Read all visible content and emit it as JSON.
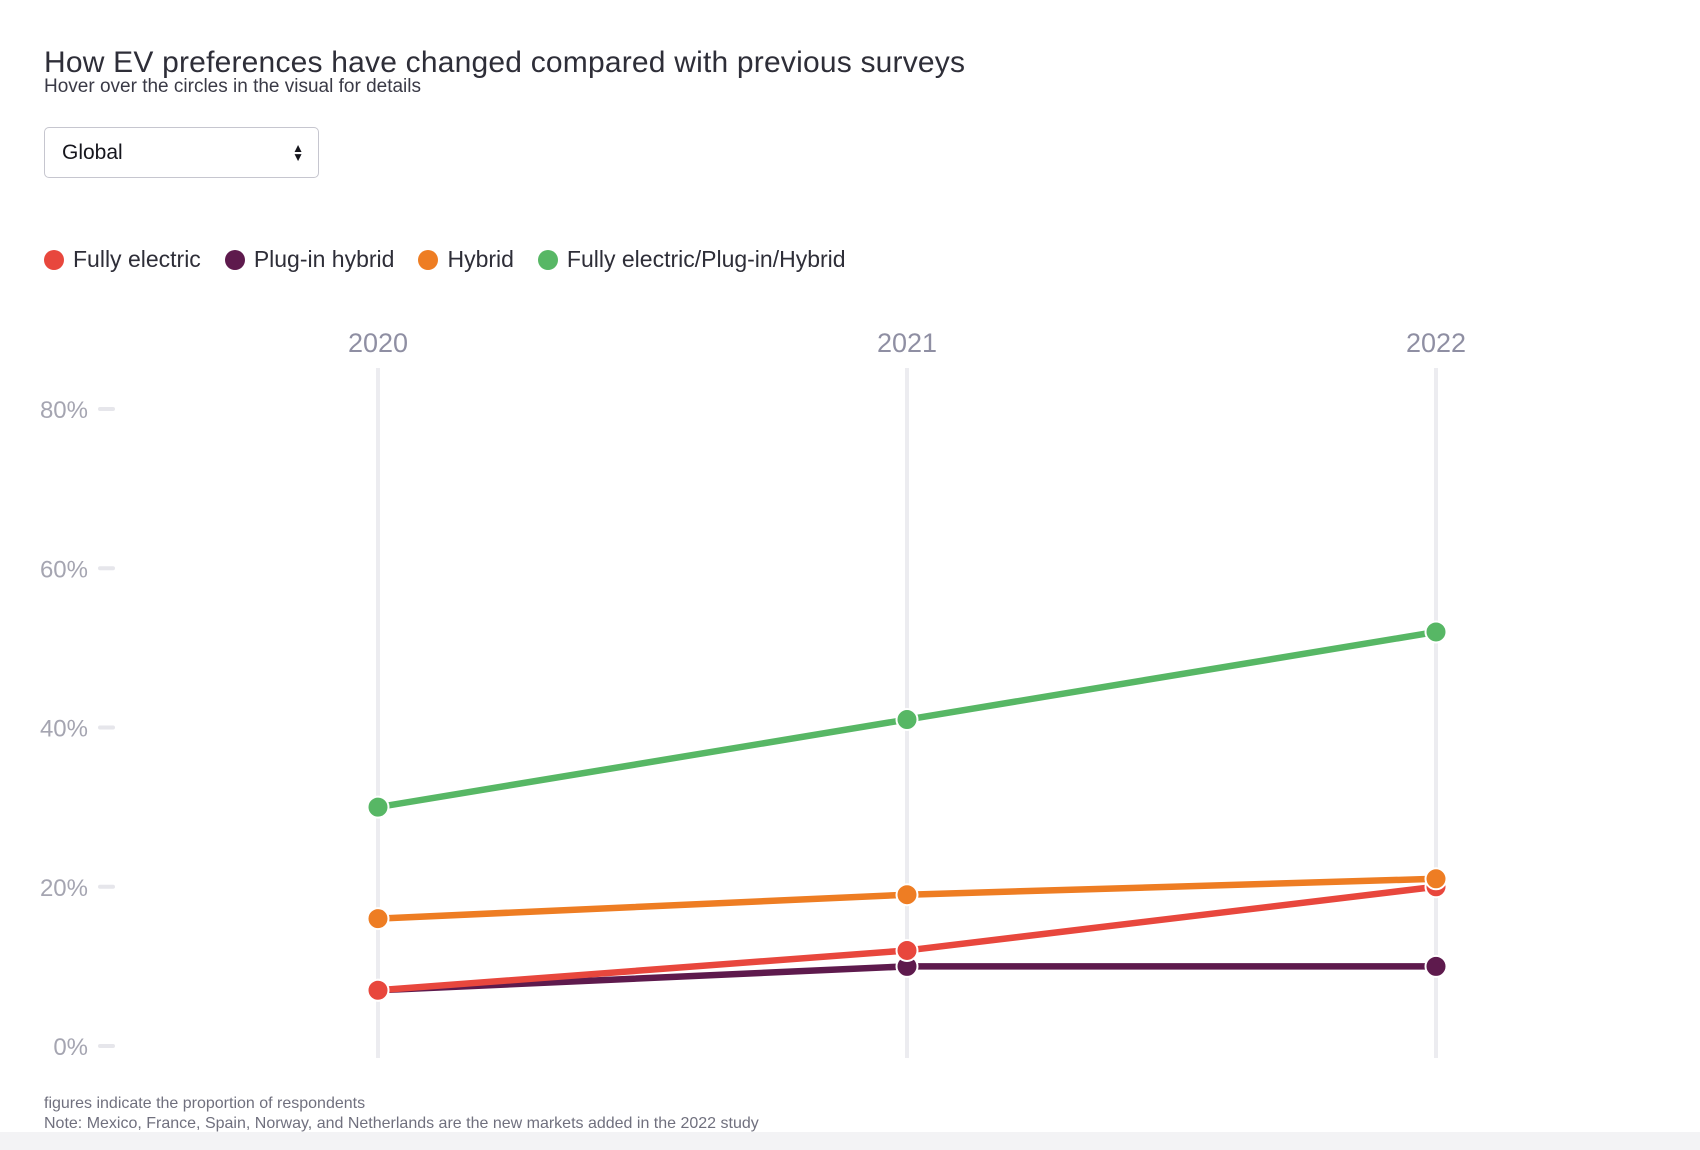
{
  "header": {
    "title": "How EV preferences have changed compared with previous surveys",
    "subtitle": "Hover over the circles in the visual for details"
  },
  "controls": {
    "region_select": {
      "value": "Global"
    }
  },
  "legend": [
    {
      "label": "Fully electric",
      "color": "#e8473d"
    },
    {
      "label": "Plug-in hybrid",
      "color": "#5e1a4d"
    },
    {
      "label": "Hybrid",
      "color": "#ee7d23"
    },
    {
      "label": "Fully electric/Plug-in/Hybrid",
      "color": "#57b765"
    }
  ],
  "chart_data": {
    "type": "line",
    "title": "How EV preferences have changed compared with previous surveys",
    "x": [
      "2020",
      "2021",
      "2022"
    ],
    "series": [
      {
        "name": "Fully electric",
        "color": "#e8473d",
        "values": [
          7,
          12,
          20
        ]
      },
      {
        "name": "Plug-in hybrid",
        "color": "#5e1a4d",
        "values": [
          7,
          10,
          10
        ]
      },
      {
        "name": "Hybrid",
        "color": "#ee7d23",
        "values": [
          16,
          19,
          21
        ]
      },
      {
        "name": "Fully electric/Plug-in/Hybrid",
        "color": "#57b765",
        "values": [
          30,
          41,
          52
        ]
      }
    ],
    "unit": "%",
    "ylim": [
      0,
      80
    ],
    "y_tick_values": [
      0,
      20,
      40,
      60,
      80
    ],
    "y_ticks": [
      "0%",
      "20%",
      "40%",
      "60%",
      "80%"
    ],
    "grid": "vertical-only",
    "legend_position": "top",
    "draw_order": [
      1,
      0,
      2,
      3
    ],
    "colors": {
      "axis_label": "#a5a5b1",
      "year_label": "#8f8fa3",
      "gridline": "#ececf0",
      "tick_dash": "#e6e6eb"
    }
  },
  "footer": {
    "line1": "figures indicate the proportion of respondents",
    "line2": "Note: Mexico, France, Spain, Norway, and Netherlands are the new markets added in the 2022 study"
  }
}
